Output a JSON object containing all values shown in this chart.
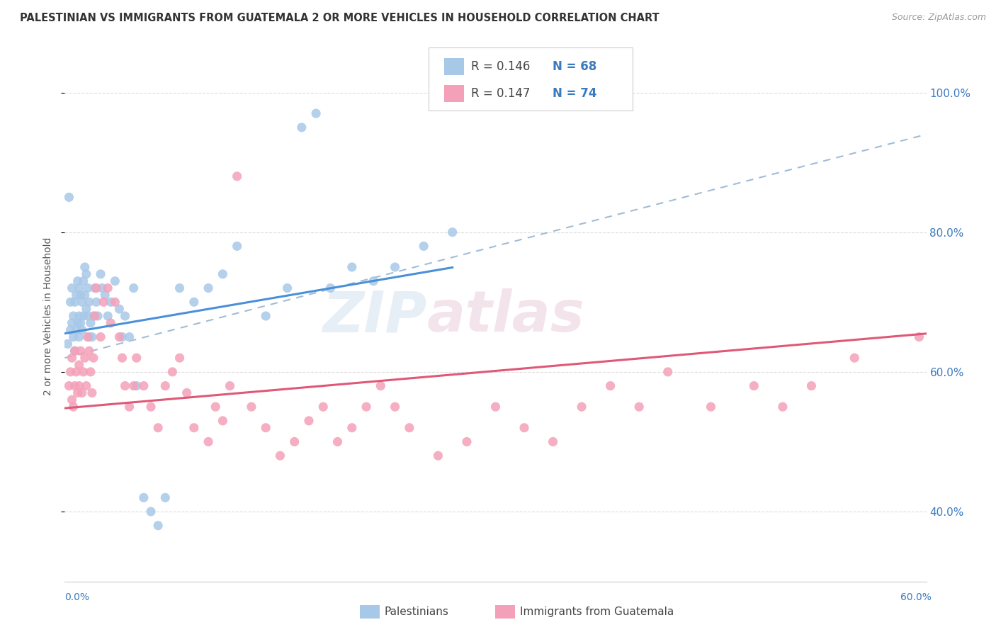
{
  "title": "PALESTINIAN VS IMMIGRANTS FROM GUATEMALA 2 OR MORE VEHICLES IN HOUSEHOLD CORRELATION CHART",
  "source": "Source: ZipAtlas.com",
  "ylabel": "2 or more Vehicles in Household",
  "ytick_vals": [
    0.4,
    0.6,
    0.8,
    1.0
  ],
  "xmin": 0.0,
  "xmax": 0.6,
  "ymin": 0.3,
  "ymax": 1.06,
  "color_blue": "#a8c8e8",
  "color_pink": "#f4a0b8",
  "color_blue_text": "#3a7abf",
  "color_trend_blue": "#4a90d9",
  "color_trend_pink": "#e05878",
  "color_dashed": "#a0bcd8",
  "watermark_zip": "ZIP",
  "watermark_atlas": "atlas",
  "palestinians_x": [
    0.002,
    0.003,
    0.004,
    0.004,
    0.005,
    0.005,
    0.006,
    0.006,
    0.007,
    0.007,
    0.008,
    0.008,
    0.009,
    0.009,
    0.01,
    0.01,
    0.01,
    0.011,
    0.011,
    0.012,
    0.012,
    0.013,
    0.013,
    0.014,
    0.014,
    0.015,
    0.015,
    0.016,
    0.016,
    0.017,
    0.017,
    0.018,
    0.019,
    0.02,
    0.021,
    0.022,
    0.023,
    0.025,
    0.026,
    0.028,
    0.03,
    0.032,
    0.035,
    0.038,
    0.04,
    0.042,
    0.045,
    0.048,
    0.05,
    0.055,
    0.06,
    0.065,
    0.07,
    0.08,
    0.09,
    0.1,
    0.11,
    0.12,
    0.14,
    0.155,
    0.165,
    0.175,
    0.185,
    0.2,
    0.215,
    0.23,
    0.25,
    0.27
  ],
  "palestinians_y": [
    0.64,
    0.85,
    0.66,
    0.7,
    0.67,
    0.72,
    0.65,
    0.68,
    0.63,
    0.7,
    0.66,
    0.71,
    0.67,
    0.73,
    0.65,
    0.68,
    0.72,
    0.67,
    0.71,
    0.66,
    0.7,
    0.68,
    0.73,
    0.71,
    0.75,
    0.69,
    0.74,
    0.68,
    0.72,
    0.65,
    0.7,
    0.67,
    0.65,
    0.68,
    0.72,
    0.7,
    0.68,
    0.74,
    0.72,
    0.71,
    0.68,
    0.7,
    0.73,
    0.69,
    0.65,
    0.68,
    0.65,
    0.72,
    0.58,
    0.42,
    0.4,
    0.38,
    0.42,
    0.72,
    0.7,
    0.72,
    0.74,
    0.78,
    0.68,
    0.72,
    0.95,
    0.97,
    0.72,
    0.75,
    0.73,
    0.75,
    0.78,
    0.8
  ],
  "guatemala_x": [
    0.003,
    0.004,
    0.005,
    0.005,
    0.006,
    0.007,
    0.007,
    0.008,
    0.009,
    0.01,
    0.01,
    0.011,
    0.012,
    0.013,
    0.014,
    0.015,
    0.016,
    0.017,
    0.018,
    0.019,
    0.02,
    0.021,
    0.022,
    0.025,
    0.027,
    0.03,
    0.032,
    0.035,
    0.038,
    0.04,
    0.042,
    0.045,
    0.048,
    0.05,
    0.055,
    0.06,
    0.065,
    0.07,
    0.075,
    0.08,
    0.085,
    0.09,
    0.1,
    0.105,
    0.11,
    0.115,
    0.12,
    0.13,
    0.14,
    0.15,
    0.16,
    0.17,
    0.18,
    0.19,
    0.2,
    0.21,
    0.22,
    0.23,
    0.24,
    0.26,
    0.28,
    0.3,
    0.32,
    0.34,
    0.36,
    0.38,
    0.4,
    0.42,
    0.45,
    0.48,
    0.5,
    0.52,
    0.55,
    0.595
  ],
  "guatemala_y": [
    0.58,
    0.6,
    0.56,
    0.62,
    0.55,
    0.58,
    0.63,
    0.6,
    0.57,
    0.61,
    0.58,
    0.63,
    0.57,
    0.6,
    0.62,
    0.58,
    0.65,
    0.63,
    0.6,
    0.57,
    0.62,
    0.68,
    0.72,
    0.65,
    0.7,
    0.72,
    0.67,
    0.7,
    0.65,
    0.62,
    0.58,
    0.55,
    0.58,
    0.62,
    0.58,
    0.55,
    0.52,
    0.58,
    0.6,
    0.62,
    0.57,
    0.52,
    0.5,
    0.55,
    0.53,
    0.58,
    0.88,
    0.55,
    0.52,
    0.48,
    0.5,
    0.53,
    0.55,
    0.5,
    0.52,
    0.55,
    0.58,
    0.55,
    0.52,
    0.48,
    0.5,
    0.55,
    0.52,
    0.5,
    0.55,
    0.58,
    0.55,
    0.6,
    0.55,
    0.58,
    0.55,
    0.58,
    0.62,
    0.65
  ]
}
